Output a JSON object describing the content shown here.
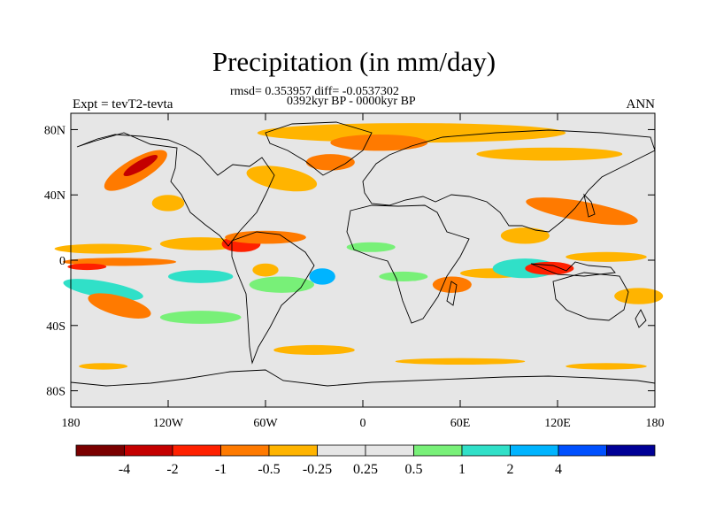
{
  "title": "Precipitation (in mm/day)",
  "stats_line": "rmsd= 0.353957 diff= -0.0537302",
  "period_line": "0392kyr BP - 0000kyr BP",
  "left_label": "Expt = tevT2-tevta",
  "right_label": "ANN",
  "lat_ticks": [
    {
      "label": "80N",
      "value": 80
    },
    {
      "label": "40N",
      "value": 40
    },
    {
      "label": "0",
      "value": 0
    },
    {
      "label": "40S",
      "value": -40
    },
    {
      "label": "80S",
      "value": -80
    }
  ],
  "lon_ticks": [
    {
      "label": "180",
      "value": -180
    },
    {
      "label": "120W",
      "value": -120
    },
    {
      "label": "60W",
      "value": -60
    },
    {
      "label": "0",
      "value": 0
    },
    {
      "label": "60E",
      "value": 60
    },
    {
      "label": "120E",
      "value": 120
    },
    {
      "label": "180",
      "value": 180
    }
  ],
  "colorbar": {
    "colors": [
      "#7a0000",
      "#c40000",
      "#ff2000",
      "#ff7a00",
      "#ffb400",
      "#e6e6e6",
      "#e6e6e6",
      "#78f078",
      "#30e0c8",
      "#00b4ff",
      "#0050ff",
      "#000096"
    ],
    "labels": [
      "-4",
      "-2",
      "-1",
      "-0.5",
      "-0.25",
      "0.25",
      "0.5",
      "1",
      "2",
      "4"
    ]
  },
  "map_colors": {
    "background": "#e6e6e6",
    "coast": "#000000"
  },
  "anomaly_regions": [
    {
      "lon": 30,
      "lat": 78,
      "rx": 95,
      "ry": 6,
      "color": "#ffb400",
      "rot": 0
    },
    {
      "lon": 10,
      "lat": 72,
      "rx": 30,
      "ry": 5,
      "color": "#ff7a00",
      "rot": 0
    },
    {
      "lon": 115,
      "lat": 65,
      "rx": 45,
      "ry": 4,
      "color": "#ffb400",
      "rot": 0
    },
    {
      "lon": -140,
      "lat": 55,
      "rx": 22,
      "ry": 7,
      "color": "#ff7a00",
      "rot": -30
    },
    {
      "lon": -137,
      "lat": 58,
      "rx": 12,
      "ry": 3,
      "color": "#c40000",
      "rot": -30
    },
    {
      "lon": -120,
      "lat": 35,
      "rx": 10,
      "ry": 5,
      "color": "#ffb400",
      "rot": 0
    },
    {
      "lon": -50,
      "lat": 50,
      "rx": 22,
      "ry": 7,
      "color": "#ffb400",
      "rot": 10
    },
    {
      "lon": -20,
      "lat": 60,
      "rx": 15,
      "ry": 5,
      "color": "#ff7a00",
      "rot": 0
    },
    {
      "lon": -160,
      "lat": 7,
      "rx": 30,
      "ry": 3,
      "color": "#ffb400",
      "rot": 0
    },
    {
      "lon": -150,
      "lat": -1,
      "rx": 35,
      "ry": 2.5,
      "color": "#ff7a00",
      "rot": 0
    },
    {
      "lon": -170,
      "lat": -4,
      "rx": 12,
      "ry": 2,
      "color": "#ff2000",
      "rot": 0
    },
    {
      "lon": -160,
      "lat": -18,
      "rx": 25,
      "ry": 5,
      "color": "#30e0c8",
      "rot": 10
    },
    {
      "lon": -150,
      "lat": -28,
      "rx": 20,
      "ry": 6,
      "color": "#ff7a00",
      "rot": 15
    },
    {
      "lon": -100,
      "lat": 10,
      "rx": 25,
      "ry": 4,
      "color": "#ffb400",
      "rot": 0
    },
    {
      "lon": -75,
      "lat": 10,
      "rx": 12,
      "ry": 5,
      "color": "#ff2000",
      "rot": 0
    },
    {
      "lon": -60,
      "lat": 14,
      "rx": 25,
      "ry": 4,
      "color": "#ff7a00",
      "rot": 0
    },
    {
      "lon": -100,
      "lat": -10,
      "rx": 20,
      "ry": 4,
      "color": "#30e0c8",
      "rot": 0
    },
    {
      "lon": -60,
      "lat": -6,
      "rx": 8,
      "ry": 4,
      "color": "#ffb400",
      "rot": 0
    },
    {
      "lon": -50,
      "lat": -15,
      "rx": 20,
      "ry": 5,
      "color": "#78f078",
      "rot": 0
    },
    {
      "lon": -25,
      "lat": -10,
      "rx": 8,
      "ry": 5,
      "color": "#00b4ff",
      "rot": 0
    },
    {
      "lon": 5,
      "lat": 8,
      "rx": 15,
      "ry": 3,
      "color": "#78f078",
      "rot": 0
    },
    {
      "lon": 25,
      "lat": -10,
      "rx": 15,
      "ry": 3,
      "color": "#78f078",
      "rot": 0
    },
    {
      "lon": 55,
      "lat": -15,
      "rx": 12,
      "ry": 5,
      "color": "#ff7a00",
      "rot": 0
    },
    {
      "lon": 80,
      "lat": -8,
      "rx": 20,
      "ry": 3,
      "color": "#ffb400",
      "rot": 0
    },
    {
      "lon": 100,
      "lat": 15,
      "rx": 15,
      "ry": 5,
      "color": "#ffb400",
      "rot": 0
    },
    {
      "lon": 100,
      "lat": -5,
      "rx": 20,
      "ry": 6,
      "color": "#30e0c8",
      "rot": 0
    },
    {
      "lon": 115,
      "lat": -5,
      "rx": 15,
      "ry": 4,
      "color": "#ff2000",
      "rot": 0
    },
    {
      "lon": 135,
      "lat": 30,
      "rx": 35,
      "ry": 6,
      "color": "#ff7a00",
      "rot": 10
    },
    {
      "lon": 150,
      "lat": 2,
      "rx": 25,
      "ry": 3,
      "color": "#ffb400",
      "rot": 0
    },
    {
      "lon": 170,
      "lat": -22,
      "rx": 15,
      "ry": 5,
      "color": "#ffb400",
      "rot": 0
    },
    {
      "lon": -100,
      "lat": -35,
      "rx": 25,
      "ry": 4,
      "color": "#78f078",
      "rot": 0
    },
    {
      "lon": -30,
      "lat": -55,
      "rx": 25,
      "ry": 3,
      "color": "#ffb400",
      "rot": 0
    },
    {
      "lon": 60,
      "lat": -62,
      "rx": 40,
      "ry": 2,
      "color": "#ffb400",
      "rot": 0
    },
    {
      "lon": 150,
      "lat": -65,
      "rx": 25,
      "ry": 2,
      "color": "#ffb400",
      "rot": 0
    },
    {
      "lon": -160,
      "lat": -65,
      "rx": 15,
      "ry": 2,
      "color": "#ffb400",
      "rot": 0
    }
  ]
}
